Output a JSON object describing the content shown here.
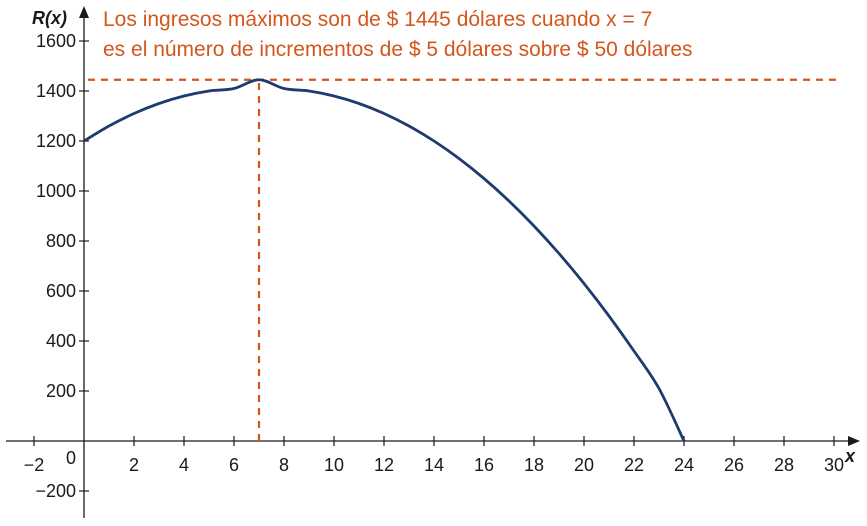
{
  "chart_data": {
    "type": "line",
    "title": "",
    "xlabel": "x",
    "ylabel": "R(x)",
    "xlim": [
      -2,
      30
    ],
    "ylim": [
      -200,
      1600
    ],
    "x_ticks": [
      -2,
      2,
      4,
      6,
      8,
      10,
      12,
      14,
      16,
      18,
      20,
      22,
      24,
      26,
      28,
      30
    ],
    "x_tick_labels": [
      "−2",
      "2",
      "4",
      "6",
      "8",
      "10",
      "12",
      "14",
      "16",
      "18",
      "20",
      "22",
      "24",
      "26",
      "28",
      "30"
    ],
    "y_ticks": [
      -200,
      200,
      400,
      600,
      800,
      1000,
      1200,
      1400,
      1600
    ],
    "y_tick_labels": [
      "−200",
      "200",
      "400",
      "600",
      "800",
      "1000",
      "1200",
      "1400",
      "1600"
    ],
    "origin_label": "0",
    "grid": false,
    "series": [
      {
        "color": "#1f3a6e",
        "x": [
          0,
          1,
          2,
          3,
          4,
          5,
          6,
          7,
          8,
          9,
          10,
          11,
          12,
          13,
          14,
          15,
          16,
          17,
          18,
          19,
          20,
          21,
          22,
          23,
          24
        ],
        "y": [
          1200,
          1260,
          1310,
          1350,
          1380,
          1400,
          1410,
          1445,
          1410,
          1400,
          1380,
          1350,
          1310,
          1260,
          1200,
          1130,
          1050,
          960,
          860,
          750,
          630,
          500,
          360,
          210,
          0
        ]
      }
    ],
    "reference_lines": [
      {
        "orientation": "horizontal",
        "value": 1445,
        "style": "dashed",
        "color": "#d4561d"
      },
      {
        "orientation": "vertical",
        "value": 7,
        "style": "dashed",
        "color": "#d4561d",
        "y_to": 1445
      }
    ],
    "annotations": [
      {
        "lines": [
          "Los ingresos máximos son de $ 1445 dólares cuando  x = 7",
          "es el número de incrementos de $ 5 dólares sobre $ 50 dólares"
        ],
        "color": "#d4561d"
      }
    ],
    "axis_color": "#1a1a1a"
  }
}
